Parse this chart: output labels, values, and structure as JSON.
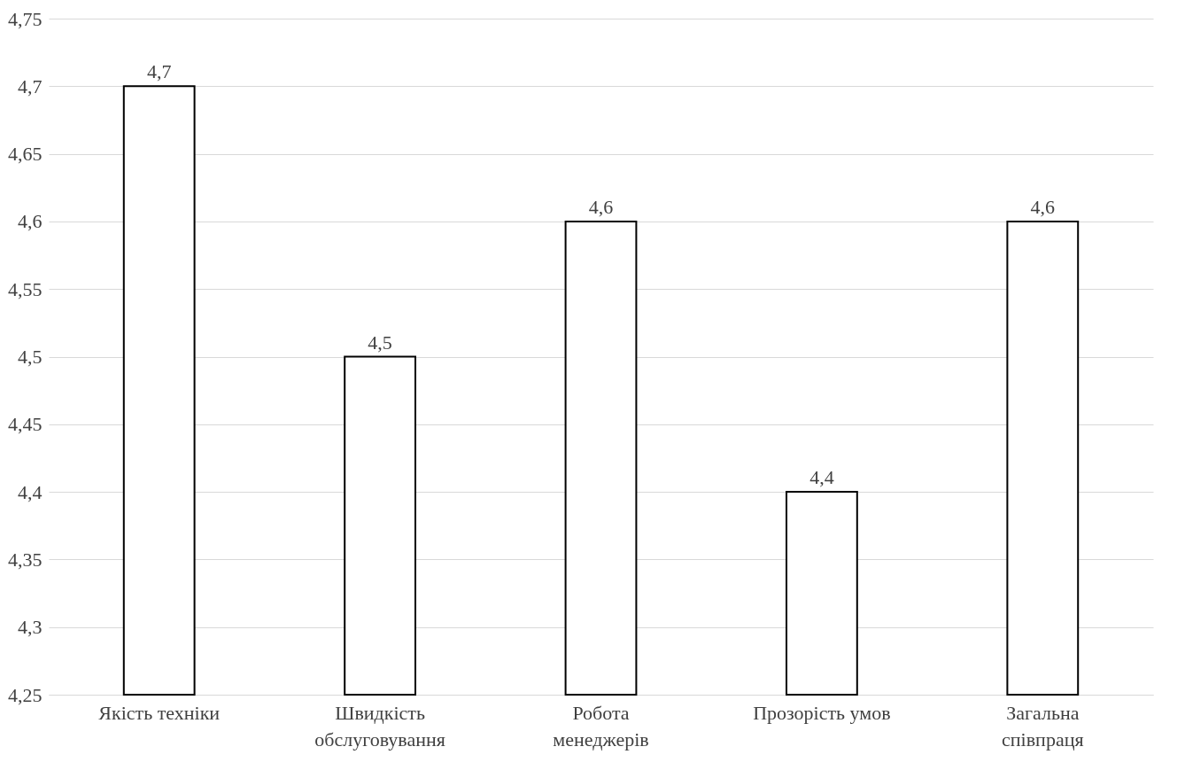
{
  "chart_data": {
    "type": "bar",
    "categories": [
      "Якість техніки",
      "Швидкість\nобслуговування",
      "Робота\nменеджерів",
      "Прозорість умов",
      "Загальна\nспівпраця"
    ],
    "values": [
      4.7,
      4.5,
      4.6,
      4.4,
      4.6
    ],
    "value_labels": [
      "4,7",
      "4,5",
      "4,6",
      "4,4",
      "4,6"
    ],
    "color": "#ffffff",
    "ylim": [
      4.25,
      4.75
    ],
    "yticks": [
      {
        "value": 4.25,
        "label": "4,25"
      },
      {
        "value": 4.3,
        "label": "4,3"
      },
      {
        "value": 4.35,
        "label": "4,35"
      },
      {
        "value": 4.4,
        "label": "4,4"
      },
      {
        "value": 4.45,
        "label": "4,45"
      },
      {
        "value": 4.5,
        "label": "4,5"
      },
      {
        "value": 4.55,
        "label": "4,55"
      },
      {
        "value": 4.6,
        "label": "4,6"
      },
      {
        "value": 4.65,
        "label": "4,65"
      },
      {
        "value": 4.7,
        "label": "4,7"
      },
      {
        "value": 4.75,
        "label": "4,75"
      }
    ],
    "grid": "y"
  }
}
